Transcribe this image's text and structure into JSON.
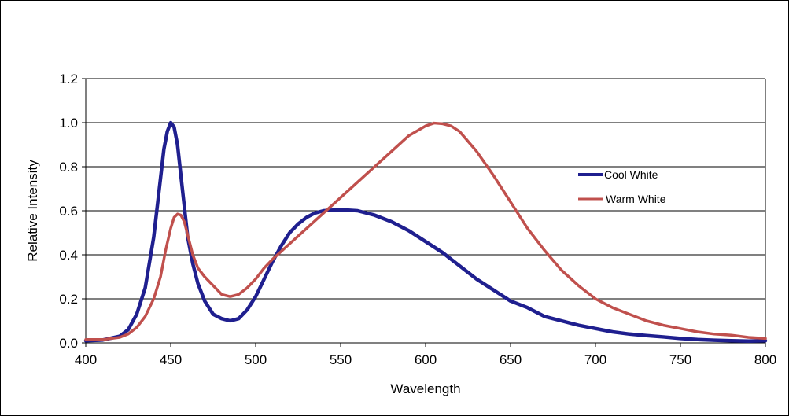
{
  "chart_data": {
    "type": "line",
    "title": "",
    "xlabel": "Wavelength",
    "ylabel": "Relative Intensity",
    "xlim": [
      400,
      800
    ],
    "ylim": [
      0,
      1.2
    ],
    "x_ticks": [
      400,
      450,
      500,
      550,
      600,
      650,
      700,
      750,
      800
    ],
    "y_ticks": [
      0.0,
      0.2,
      0.4,
      0.6,
      0.8,
      1.0,
      1.2
    ],
    "y_tick_labels": [
      "0.0",
      "0.2",
      "0.4",
      "0.6",
      "0.8",
      "1.0",
      "1.2"
    ],
    "grid": "horizontal",
    "legend_position": "right",
    "series": [
      {
        "name": "Cool White",
        "color": "#1f1f8f",
        "points": [
          [
            400,
            0.01
          ],
          [
            410,
            0.013
          ],
          [
            420,
            0.03
          ],
          [
            425,
            0.06
          ],
          [
            430,
            0.13
          ],
          [
            435,
            0.25
          ],
          [
            440,
            0.48
          ],
          [
            443,
            0.68
          ],
          [
            446,
            0.88
          ],
          [
            448,
            0.96
          ],
          [
            450,
            1.0
          ],
          [
            452,
            0.98
          ],
          [
            454,
            0.9
          ],
          [
            456,
            0.76
          ],
          [
            458,
            0.62
          ],
          [
            460,
            0.48
          ],
          [
            463,
            0.36
          ],
          [
            466,
            0.27
          ],
          [
            470,
            0.19
          ],
          [
            475,
            0.13
          ],
          [
            480,
            0.11
          ],
          [
            485,
            0.1
          ],
          [
            490,
            0.11
          ],
          [
            495,
            0.15
          ],
          [
            500,
            0.21
          ],
          [
            505,
            0.29
          ],
          [
            510,
            0.37
          ],
          [
            515,
            0.44
          ],
          [
            520,
            0.5
          ],
          [
            525,
            0.54
          ],
          [
            530,
            0.57
          ],
          [
            535,
            0.59
          ],
          [
            540,
            0.6
          ],
          [
            550,
            0.605
          ],
          [
            560,
            0.6
          ],
          [
            570,
            0.58
          ],
          [
            580,
            0.55
          ],
          [
            590,
            0.51
          ],
          [
            600,
            0.46
          ],
          [
            610,
            0.41
          ],
          [
            620,
            0.35
          ],
          [
            630,
            0.29
          ],
          [
            640,
            0.24
          ],
          [
            650,
            0.19
          ],
          [
            660,
            0.16
          ],
          [
            670,
            0.12
          ],
          [
            680,
            0.1
          ],
          [
            690,
            0.08
          ],
          [
            700,
            0.065
          ],
          [
            710,
            0.05
          ],
          [
            720,
            0.04
          ],
          [
            730,
            0.033
          ],
          [
            740,
            0.027
          ],
          [
            750,
            0.02
          ],
          [
            760,
            0.015
          ],
          [
            770,
            0.012
          ],
          [
            780,
            0.01
          ],
          [
            790,
            0.008
          ],
          [
            800,
            0.01
          ]
        ]
      },
      {
        "name": "Warm White",
        "color": "#c0504d",
        "points": [
          [
            400,
            0.015
          ],
          [
            410,
            0.015
          ],
          [
            420,
            0.025
          ],
          [
            425,
            0.04
          ],
          [
            430,
            0.07
          ],
          [
            435,
            0.12
          ],
          [
            440,
            0.2
          ],
          [
            444,
            0.3
          ],
          [
            447,
            0.42
          ],
          [
            450,
            0.52
          ],
          [
            452,
            0.57
          ],
          [
            454,
            0.585
          ],
          [
            456,
            0.58
          ],
          [
            458,
            0.55
          ],
          [
            460,
            0.49
          ],
          [
            463,
            0.4
          ],
          [
            466,
            0.34
          ],
          [
            470,
            0.3
          ],
          [
            475,
            0.26
          ],
          [
            480,
            0.22
          ],
          [
            485,
            0.21
          ],
          [
            490,
            0.22
          ],
          [
            495,
            0.25
          ],
          [
            500,
            0.29
          ],
          [
            505,
            0.34
          ],
          [
            510,
            0.38
          ],
          [
            520,
            0.45
          ],
          [
            530,
            0.52
          ],
          [
            540,
            0.59
          ],
          [
            550,
            0.66
          ],
          [
            560,
            0.73
          ],
          [
            570,
            0.8
          ],
          [
            580,
            0.87
          ],
          [
            590,
            0.94
          ],
          [
            600,
            0.985
          ],
          [
            605,
            0.998
          ],
          [
            610,
            0.995
          ],
          [
            615,
            0.985
          ],
          [
            620,
            0.96
          ],
          [
            630,
            0.87
          ],
          [
            640,
            0.76
          ],
          [
            650,
            0.64
          ],
          [
            660,
            0.52
          ],
          [
            670,
            0.42
          ],
          [
            680,
            0.33
          ],
          [
            690,
            0.26
          ],
          [
            700,
            0.2
          ],
          [
            710,
            0.16
          ],
          [
            720,
            0.13
          ],
          [
            730,
            0.1
          ],
          [
            740,
            0.08
          ],
          [
            750,
            0.065
          ],
          [
            760,
            0.05
          ],
          [
            770,
            0.04
          ],
          [
            780,
            0.035
          ],
          [
            790,
            0.025
          ],
          [
            800,
            0.02
          ]
        ]
      }
    ]
  }
}
